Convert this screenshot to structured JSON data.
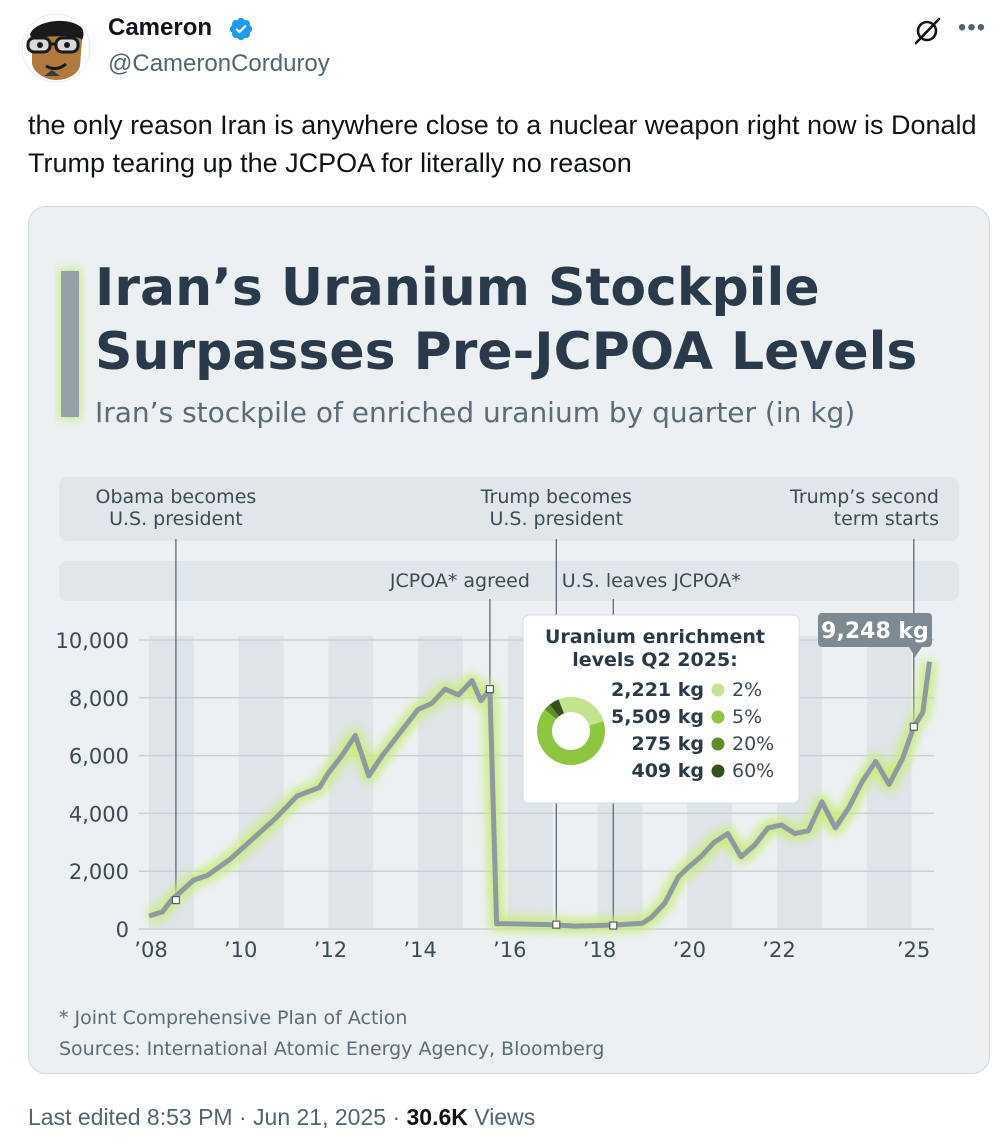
{
  "author": {
    "name": "Cameron",
    "handle": "@CameronCorduroy"
  },
  "tweet_text": "the only reason Iran is anywhere close to a nuclear weapon right now is Donald Trump tearing up the JCPOA for literally no reason",
  "meta": {
    "edited": "Last edited 8:53 PM",
    "sep1": "·",
    "date": "Jun 21, 2025",
    "sep2": "·",
    "views_count": "30.6K",
    "views_label": "Views"
  },
  "colors": {
    "accent_line": "#95a0a8",
    "glow": "#c9ec7a",
    "verified": "#1d9bf0",
    "card_bg": "#ecf0f3"
  },
  "chart_data": {
    "type": "line",
    "title": "Iran’s Uranium Stockpile Surpasses Pre-JCPOA Levels",
    "title_lines": [
      "Iran’s Uranium Stockpile",
      "Surpasses Pre-JCPOA Levels"
    ],
    "subtitle": "Iran’s stockpile of enriched uranium by quarter (in kg)",
    "ylim": [
      0,
      10000
    ],
    "yticks": [
      0,
      2000,
      4000,
      6000,
      8000,
      10000
    ],
    "ytick_labels": [
      "0",
      "2,000",
      "4,000",
      "6,000",
      "8,000",
      "10,000"
    ],
    "xlim": [
      2008,
      2025.5
    ],
    "xticks": [
      2008,
      2010,
      2012,
      2014,
      2016,
      2018,
      2020,
      2022,
      2025
    ],
    "xtick_labels": [
      "’08",
      "’10",
      "’12",
      "’14",
      "’16",
      "’18",
      "’20",
      "’22",
      "’25"
    ],
    "grid": true,
    "series": [
      {
        "x": [
          2008.0,
          2008.3,
          2008.5,
          2009.0,
          2009.3,
          2009.8,
          2010.3,
          2010.8,
          2011.3,
          2011.8,
          2012.0,
          2012.3,
          2012.6,
          2012.9,
          2013.2,
          2013.6,
          2014.0,
          2014.3,
          2014.6,
          2014.9,
          2015.2,
          2015.4,
          2015.6,
          2015.75,
          2016.0,
          2017.0,
          2017.5,
          2018.0,
          2018.5,
          2019.0,
          2019.2,
          2019.5,
          2019.8,
          2020.0,
          2020.3,
          2020.6,
          2020.9,
          2021.2,
          2021.5,
          2021.8,
          2022.1,
          2022.4,
          2022.7,
          2023.0,
          2023.3,
          2023.6,
          2023.9,
          2024.2,
          2024.5,
          2024.8,
          2025.05,
          2025.25,
          2025.4
        ],
        "y": [
          450,
          600,
          1000,
          1700,
          1850,
          2400,
          3100,
          3800,
          4600,
          4900,
          5400,
          6000,
          6700,
          5300,
          6000,
          6800,
          7600,
          7800,
          8300,
          8100,
          8600,
          7900,
          8300,
          180,
          180,
          150,
          100,
          120,
          150,
          200,
          400,
          900,
          1800,
          2100,
          2500,
          3000,
          3300,
          2500,
          2900,
          3500,
          3600,
          3300,
          3400,
          4400,
          3500,
          4200,
          5100,
          5800,
          5000,
          5900,
          7000,
          7500,
          9248
        ]
      }
    ],
    "end_label": "9,248 kg",
    "events": [
      {
        "x": 2008.6,
        "label": [
          "Obama becomes",
          "U.S. president"
        ],
        "row": "top"
      },
      {
        "x": 2015.6,
        "label": [
          "JCPOA* agreed"
        ],
        "row": "mid"
      },
      {
        "x": 2017.08,
        "label": [
          "Trump becomes",
          "U.S. president"
        ],
        "row": "top"
      },
      {
        "x": 2018.35,
        "label": [
          "U.S. leaves JCPOA*"
        ],
        "row": "mid"
      },
      {
        "x": 2025.05,
        "label": [
          "Trump’s second",
          "term starts"
        ],
        "row": "top"
      }
    ],
    "inset": {
      "type": "pie",
      "title": [
        "Uranium enrichment",
        "levels Q2 2025:"
      ],
      "slices": [
        {
          "value": 2221,
          "label": "2,221 kg",
          "level": "2%",
          "color": "#c4e38e"
        },
        {
          "value": 5509,
          "label": "5,509 kg",
          "level": "5%",
          "color": "#8dc63f"
        },
        {
          "value": 275,
          "label": "275 kg",
          "level": "20%",
          "color": "#5f8f26"
        },
        {
          "value": 409,
          "label": "409 kg",
          "level": "60%",
          "color": "#34511a"
        }
      ]
    },
    "footnote": "* Joint Comprehensive Plan of Action",
    "source": "Sources: International Atomic Energy Agency, Bloomberg"
  }
}
